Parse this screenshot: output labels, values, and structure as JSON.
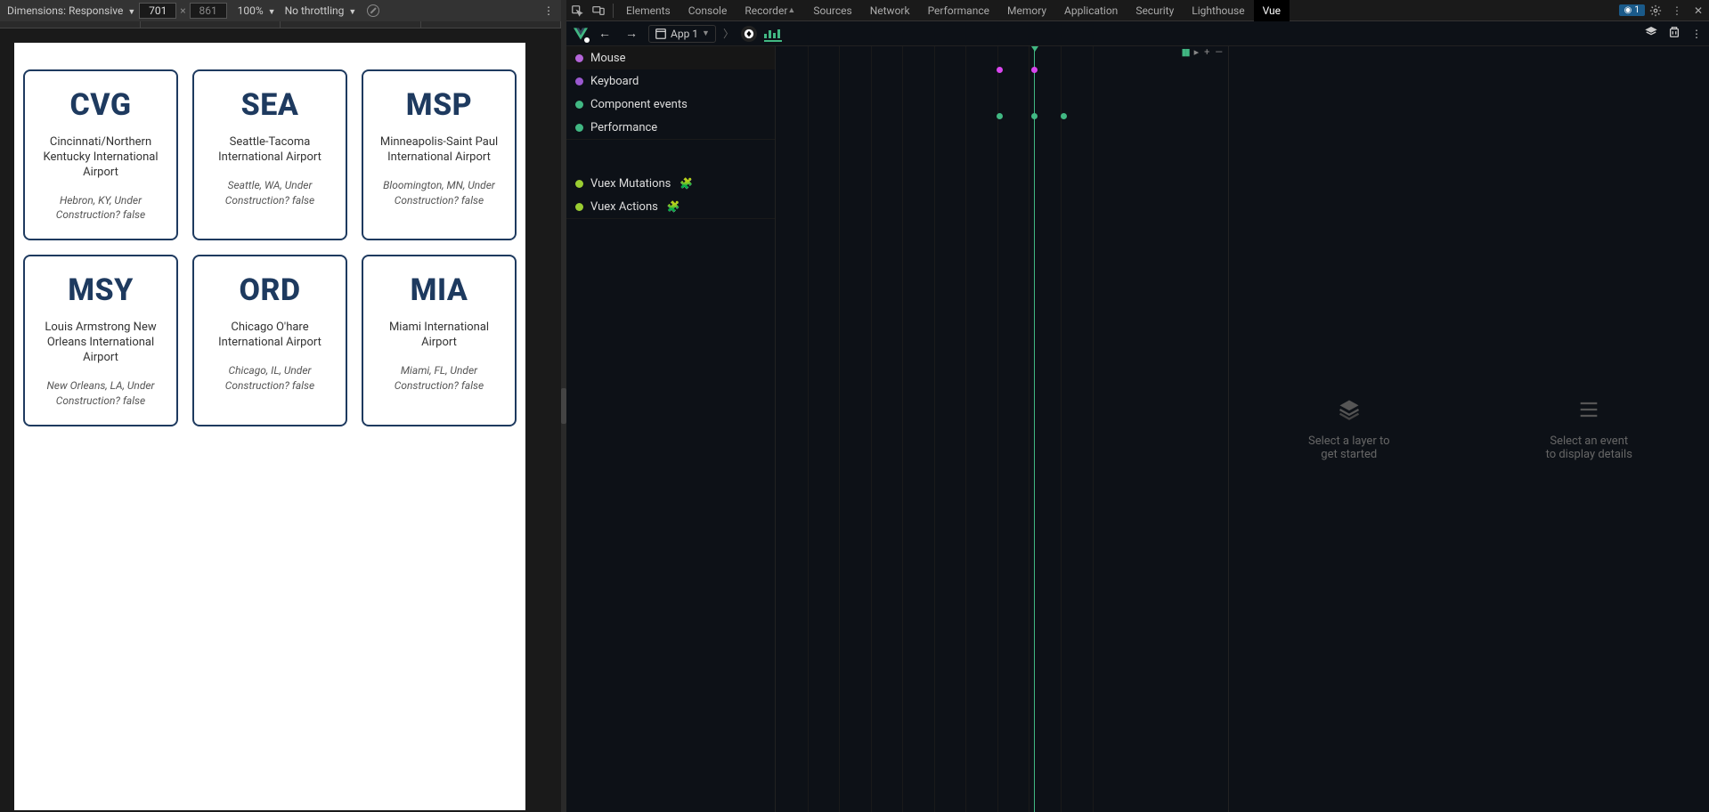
{
  "device_toolbar": {
    "dimensions_label": "Dimensions: Responsive",
    "width": "701",
    "height": "861",
    "zoom": "100%",
    "throttle": "No throttling"
  },
  "airports": [
    {
      "code": "CVG",
      "name": "Cincinnati/Northern Kentucky International Airport",
      "meta": "Hebron, KY, Under Construction? false"
    },
    {
      "code": "SEA",
      "name": "Seattle-Tacoma International Airport",
      "meta": "Seattle, WA, Under Construction? false"
    },
    {
      "code": "MSP",
      "name": "Minneapolis-Saint Paul International Airport",
      "meta": "Bloomington, MN, Under Construction? false"
    },
    {
      "code": "MSY",
      "name": "Louis Armstrong New Orleans International Airport",
      "meta": "New Orleans, LA, Under Construction? false"
    },
    {
      "code": "ORD",
      "name": "Chicago O'hare International Airport",
      "meta": "Chicago, IL, Under Construction? false"
    },
    {
      "code": "MIA",
      "name": "Miami International Airport",
      "meta": "Miami, FL, Under Construction? false"
    }
  ],
  "devtools_tabs": [
    "Elements",
    "Console",
    "Recorder",
    "Sources",
    "Network",
    "Performance",
    "Memory",
    "Application",
    "Security",
    "Lighthouse",
    "Vue"
  ],
  "active_tab": "Vue",
  "error_count": "1",
  "vue_bar": {
    "app_label": "App 1"
  },
  "layers": {
    "top": [
      {
        "label": "Mouse",
        "color": "#b565d9"
      },
      {
        "label": "Keyboard",
        "color": "#9b59d0"
      },
      {
        "label": "Component events",
        "color": "#41b883"
      },
      {
        "label": "Performance",
        "color": "#41b883"
      }
    ],
    "bottom": [
      {
        "label": "Vuex Mutations",
        "color": "#9acd32",
        "plugin": true
      },
      {
        "label": "Vuex Actions",
        "color": "#9acd32",
        "plugin": true
      }
    ]
  },
  "timeline": {
    "vlines_pct": [
      7,
      14,
      21,
      28,
      35,
      42,
      49,
      56,
      63,
      70
    ],
    "playhead_pct": 57,
    "events": [
      {
        "lane": 0,
        "x_pct": 49.5,
        "color": "#d946ef"
      },
      {
        "lane": 0,
        "x_pct": 57,
        "color": "#d946ef"
      },
      {
        "lane": 2,
        "x_pct": 49.5,
        "color": "#41b883"
      },
      {
        "lane": 2,
        "x_pct": 57,
        "color": "#41b883"
      },
      {
        "lane": 2,
        "x_pct": 63.5,
        "color": "#41b883"
      }
    ]
  },
  "placeholders": {
    "layer_line1": "Select a layer to",
    "layer_line2": "get started",
    "event_line1": "Select an event",
    "event_line2": "to display details"
  }
}
